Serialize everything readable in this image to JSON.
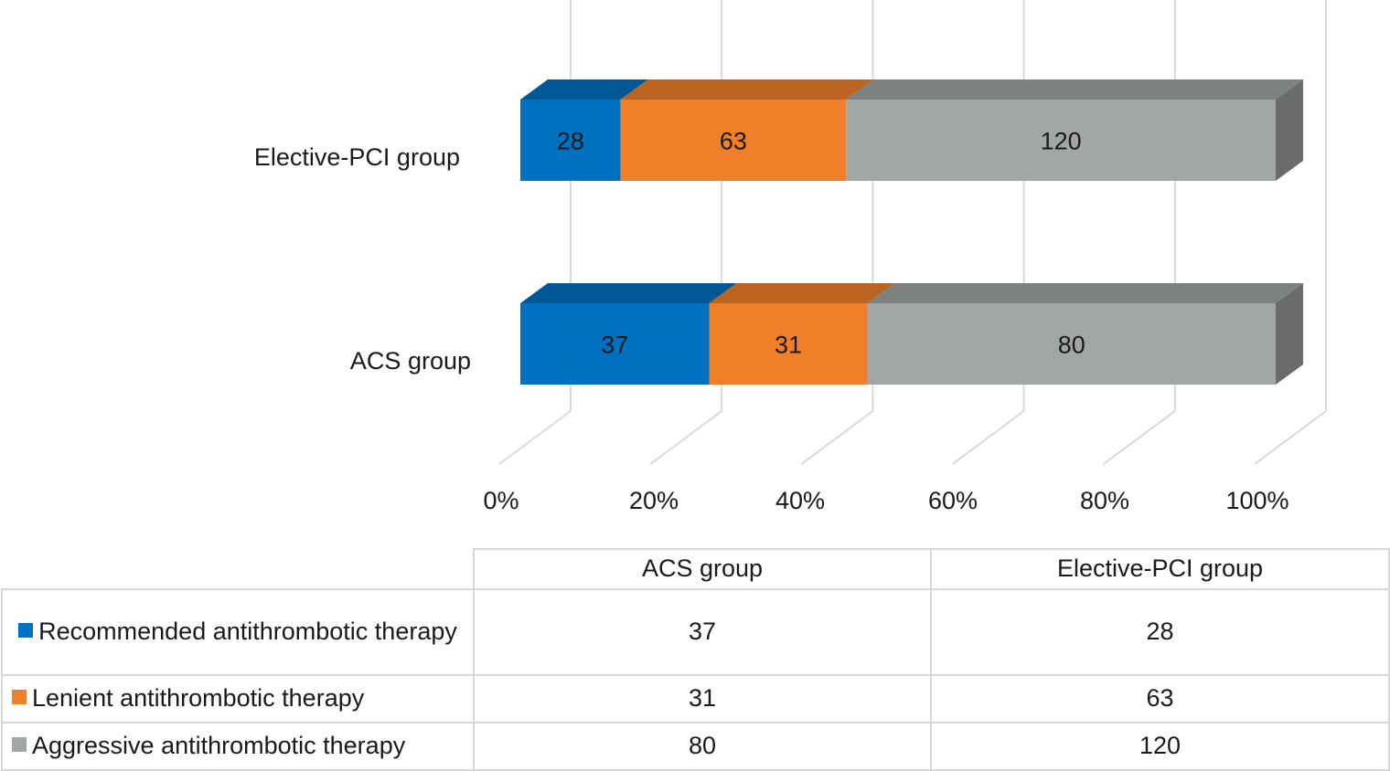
{
  "chart_data": {
    "type": "bar",
    "orientation": "horizontal",
    "stacked": "percent",
    "three_d": true,
    "categories": [
      "ACS group",
      "Elective-PCI group"
    ],
    "series": [
      {
        "name": "Recommended antithrombotic therapy",
        "color": "#0070c0",
        "values": [
          37,
          28
        ]
      },
      {
        "name": "Lenient antithrombotic therapy",
        "color": "#f07f2a",
        "values": [
          31,
          63
        ]
      },
      {
        "name": "Aggressive antithrombotic therapy",
        "color": "#a2a6a5",
        "values": [
          80,
          120
        ]
      }
    ],
    "x_ticks": [
      "0%",
      "20%",
      "40%",
      "60%",
      "80%",
      "100%"
    ],
    "xlim": [
      0,
      100
    ],
    "grid": true,
    "legend": "data-table-below"
  },
  "table": {
    "headers": [
      "",
      "ACS group",
      "Elective-PCI group"
    ],
    "rows": [
      {
        "label": "Recommended antithrombotic therapy",
        "color": "#0070c0",
        "values": [
          "37",
          "28"
        ]
      },
      {
        "label": "Lenient antithrombotic therapy",
        "color": "#f07f2a",
        "values": [
          "31",
          "63"
        ]
      },
      {
        "label": "Aggressive antithrombotic therapy",
        "color": "#a2a6a5",
        "values": [
          "80",
          "120"
        ]
      }
    ]
  }
}
